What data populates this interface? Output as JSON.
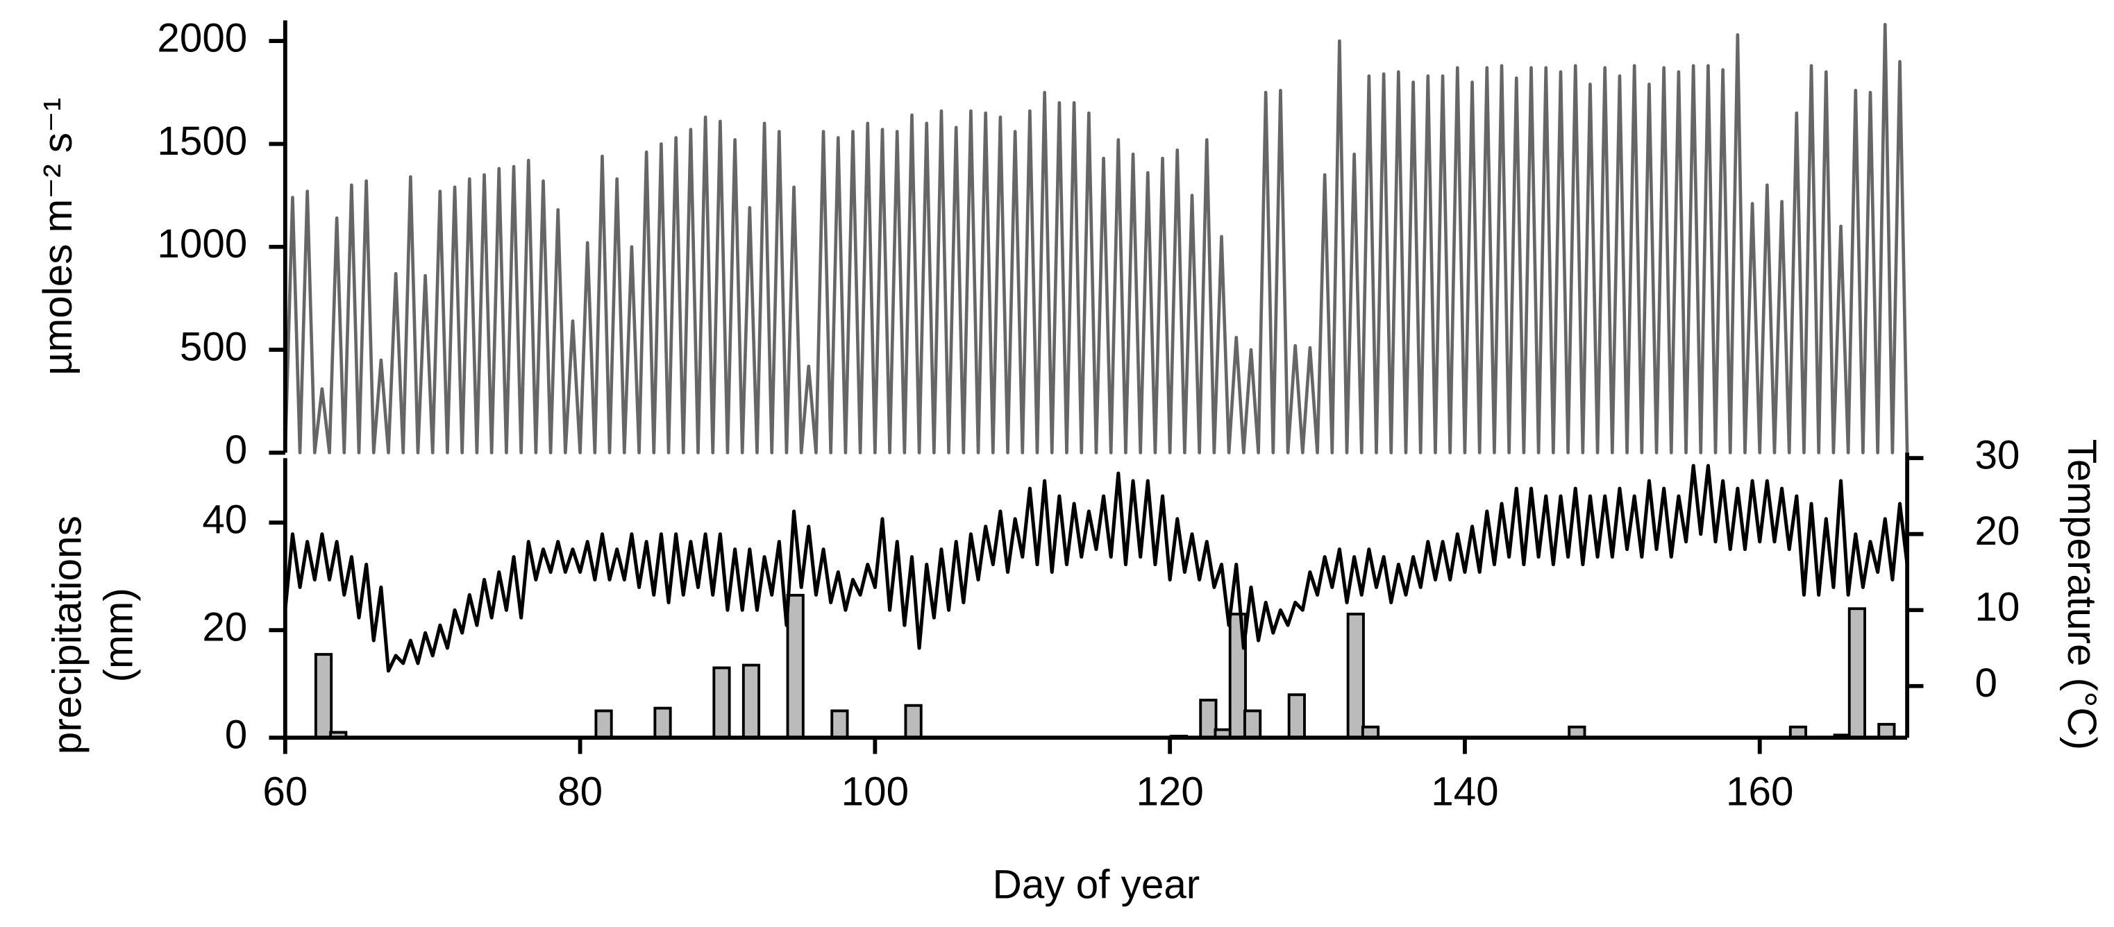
{
  "chart_data": [
    {
      "type": "line",
      "ylabel": "µmoles m⁻² s⁻¹",
      "xlim": [
        60,
        170
      ],
      "ylim": [
        0,
        2100
      ],
      "yticks": [
        0,
        500,
        1000,
        1500,
        2000
      ],
      "color": "#666666",
      "x": [
        60,
        60.5,
        61,
        61.5,
        62,
        62.5,
        63,
        63.5,
        64,
        64.5,
        65,
        65.5,
        66,
        66.5,
        67,
        67.5,
        68,
        68.5,
        69,
        69.5,
        70,
        70.5,
        71,
        71.5,
        72,
        72.5,
        73,
        73.5,
        74,
        74.5,
        75,
        75.5,
        76,
        76.5,
        77,
        77.5,
        78,
        78.5,
        79,
        79.5,
        80,
        80.5,
        81,
        81.5,
        82,
        82.5,
        83,
        83.5,
        84,
        84.5,
        85,
        85.5,
        86,
        86.5,
        87,
        87.5,
        88,
        88.5,
        89,
        89.5,
        90,
        90.5,
        91,
        91.5,
        92,
        92.5,
        93,
        93.5,
        94,
        94.5,
        95,
        95.5,
        96,
        96.5,
        97,
        97.5,
        98,
        98.5,
        99,
        99.5,
        100,
        100.5,
        101,
        101.5,
        102,
        102.5,
        103,
        103.5,
        104,
        104.5,
        105,
        105.5,
        106,
        106.5,
        107,
        107.5,
        108,
        108.5,
        109,
        109.5,
        110,
        110.5,
        111,
        111.5,
        112,
        112.5,
        113,
        113.5,
        114,
        114.5,
        115,
        115.5,
        116,
        116.5,
        117,
        117.5,
        118,
        118.5,
        119,
        119.5,
        120,
        120.5,
        121,
        121.5,
        122,
        122.5,
        123,
        123.5,
        124,
        124.5,
        125,
        125.5,
        126,
        126.5,
        127,
        127.5,
        128,
        128.5,
        129,
        129.5,
        130,
        130.5,
        131,
        131.5,
        132,
        132.5,
        133,
        133.5,
        134,
        134.5,
        135,
        135.5,
        136,
        136.5,
        137,
        137.5,
        138,
        138.5,
        139,
        139.5,
        140,
        140.5,
        141,
        141.5,
        142,
        142.5,
        143,
        143.5,
        144,
        144.5,
        145,
        145.5,
        146,
        146.5,
        147,
        147.5,
        148,
        148.5,
        149,
        149.5,
        150,
        150.5,
        151,
        151.5,
        152,
        152.5,
        153,
        153.5,
        154,
        154.5,
        155,
        155.5,
        156,
        156.5,
        157,
        157.5,
        158,
        158.5,
        159,
        159.5,
        160,
        160.5,
        161,
        161.5,
        162,
        162.5,
        163,
        163.5,
        164,
        164.5,
        165,
        165.5,
        166,
        166.5,
        167,
        167.5,
        168,
        168.5,
        169,
        169.5,
        170
      ],
      "values": [
        0,
        1240,
        0,
        1270,
        0,
        310,
        0,
        1140,
        0,
        1300,
        0,
        1320,
        0,
        450,
        0,
        870,
        0,
        1340,
        0,
        860,
        0,
        1270,
        0,
        1290,
        0,
        1330,
        0,
        1350,
        0,
        1380,
        0,
        1390,
        0,
        1420,
        0,
        1320,
        0,
        1180,
        0,
        640,
        0,
        1020,
        0,
        1440,
        0,
        1330,
        0,
        1000,
        0,
        1460,
        0,
        1500,
        0,
        1530,
        0,
        1570,
        0,
        1630,
        0,
        1610,
        0,
        1520,
        0,
        1190,
        0,
        1600,
        0,
        1560,
        0,
        1290,
        0,
        420,
        0,
        1560,
        0,
        1530,
        0,
        1560,
        0,
        1600,
        0,
        1570,
        0,
        1560,
        0,
        1640,
        0,
        1600,
        0,
        1660,
        0,
        1580,
        0,
        1660,
        0,
        1650,
        0,
        1630,
        0,
        1560,
        0,
        1660,
        0,
        1750,
        0,
        1700,
        0,
        1700,
        0,
        1650,
        0,
        1430,
        0,
        1520,
        0,
        1450,
        0,
        1360,
        0,
        1430,
        0,
        1470,
        0,
        1250,
        0,
        1520,
        0,
        1050,
        0,
        560,
        0,
        500,
        0,
        1750,
        0,
        1760,
        0,
        520,
        0,
        510,
        0,
        1350,
        0,
        2000,
        0,
        1450,
        0,
        1830,
        0,
        1840,
        0,
        1850,
        0,
        1800,
        0,
        1830,
        0,
        1830,
        0,
        1870,
        0,
        1800,
        0,
        1870,
        0,
        1880,
        0,
        1820,
        0,
        1870,
        0,
        1870,
        0,
        1850,
        0,
        1880,
        0,
        1790,
        0,
        1870,
        0,
        1830,
        0,
        1880,
        0,
        1790,
        0,
        1870,
        0,
        1850,
        0,
        1880,
        0,
        1880,
        0,
        1860,
        0,
        2030,
        0,
        1210,
        0,
        1300,
        0,
        1220,
        0,
        1650,
        0,
        1880,
        0,
        1850,
        0,
        1100,
        0,
        1760,
        0,
        1750,
        0,
        2080,
        0,
        1900,
        0
      ]
    },
    {
      "type": "bar",
      "xlabel": "Day of year",
      "ylabel": [
        "precipitations",
        "(mm)"
      ],
      "y2label": "Temperature (°C)",
      "xlim": [
        60,
        170
      ],
      "xticks": [
        60,
        80,
        100,
        120,
        140,
        160
      ],
      "ylim": [
        0,
        52
      ],
      "yticks": [
        0,
        20,
        40
      ],
      "y2lim": [
        -6.8,
        30
      ],
      "y2ticks": [
        0,
        10,
        20,
        30
      ],
      "series": [
        {
          "type": "bar",
          "color": "#bbbbbb",
          "x": [
            62.6,
            63.6,
            81.6,
            85.6,
            89.6,
            91.6,
            94.6,
            97.6,
            102.6,
            120.6,
            122.6,
            123.6,
            124.6,
            125.6,
            128.6,
            132.6,
            133.6,
            147.6,
            162.6,
            165.6,
            166.6,
            168.6
          ],
          "values": [
            15.5,
            1,
            5,
            5.5,
            13,
            13.5,
            26.5,
            5,
            6,
            0.3,
            7,
            1.5,
            23,
            5,
            8,
            23,
            2,
            2,
            2,
            0.5,
            24,
            2.5
          ]
        },
        {
          "type": "line",
          "axis": "y2",
          "color": "#000000",
          "x": [
            60,
            60.5,
            61,
            61.5,
            62,
            62.5,
            63,
            63.5,
            64,
            64.5,
            65,
            65.5,
            66,
            66.5,
            67,
            67.5,
            68,
            68.5,
            69,
            69.5,
            70,
            70.5,
            71,
            71.5,
            72,
            72.5,
            73,
            73.5,
            74,
            74.5,
            75,
            75.5,
            76,
            76.5,
            77,
            77.5,
            78,
            78.5,
            79,
            79.5,
            80,
            80.5,
            81,
            81.5,
            82,
            82.5,
            83,
            83.5,
            84,
            84.5,
            85,
            85.5,
            86,
            86.5,
            87,
            87.5,
            88,
            88.5,
            89,
            89.5,
            90,
            90.5,
            91,
            91.5,
            92,
            92.5,
            93,
            93.5,
            94,
            94.5,
            95,
            95.5,
            96,
            96.5,
            97,
            97.5,
            98,
            98.5,
            99,
            99.5,
            100,
            100.5,
            101,
            101.5,
            102,
            102.5,
            103,
            103.5,
            104,
            104.5,
            105,
            105.5,
            106,
            106.5,
            107,
            107.5,
            108,
            108.5,
            109,
            109.5,
            110,
            110.5,
            111,
            111.5,
            112,
            112.5,
            113,
            113.5,
            114,
            114.5,
            115,
            115.5,
            116,
            116.5,
            117,
            117.5,
            118,
            118.5,
            119,
            119.5,
            120,
            120.5,
            121,
            121.5,
            122,
            122.5,
            123,
            123.5,
            124,
            124.5,
            125,
            125.5,
            126,
            126.5,
            127,
            127.5,
            128,
            128.5,
            129,
            129.5,
            130,
            130.5,
            131,
            131.5,
            132,
            132.5,
            133,
            133.5,
            134,
            134.5,
            135,
            135.5,
            136,
            136.5,
            137,
            137.5,
            138,
            138.5,
            139,
            139.5,
            140,
            140.5,
            141,
            141.5,
            142,
            142.5,
            143,
            143.5,
            144,
            144.5,
            145,
            145.5,
            146,
            146.5,
            147,
            147.5,
            148,
            148.5,
            149,
            149.5,
            150,
            150.5,
            151,
            151.5,
            152,
            152.5,
            153,
            153.5,
            154,
            154.5,
            155,
            155.5,
            156,
            156.5,
            157,
            157.5,
            158,
            158.5,
            159,
            159.5,
            160,
            160.5,
            161,
            161.5,
            162,
            162.5,
            163,
            163.5,
            164,
            164.5,
            165,
            165.5,
            166,
            166.5,
            167,
            167.5,
            168,
            168.5,
            169,
            169.5,
            170
          ],
          "values": [
            10,
            20,
            13,
            19,
            14,
            20,
            14,
            19,
            12,
            17,
            9,
            16,
            6,
            13,
            2,
            4,
            3,
            6,
            3,
            7,
            4,
            8,
            5,
            10,
            7,
            12,
            8,
            14,
            9,
            15,
            10,
            17,
            9,
            19,
            14,
            18,
            15,
            19,
            15,
            18,
            15,
            19,
            14,
            20,
            14,
            18,
            14,
            20,
            13,
            19,
            12,
            20,
            11,
            20,
            12,
            19,
            13,
            20,
            12,
            20,
            10,
            18,
            10,
            18,
            10,
            17,
            12,
            19,
            8,
            23,
            13,
            21,
            12,
            18,
            11,
            15,
            10,
            14,
            12,
            16,
            13,
            22,
            10,
            19,
            8,
            17,
            5,
            16,
            9,
            18,
            10,
            19,
            11,
            20,
            14,
            21,
            16,
            23,
            15,
            22,
            17,
            26,
            16,
            27,
            15,
            25,
            16,
            24,
            17,
            23,
            18,
            25,
            17,
            28,
            16,
            27,
            17,
            27,
            16,
            25,
            14,
            22,
            15,
            20,
            14,
            19,
            13,
            16,
            8,
            16,
            5,
            13,
            6,
            11,
            7,
            10,
            8,
            11,
            10,
            15,
            12,
            17,
            13,
            18,
            11,
            17,
            12,
            18,
            13,
            17,
            11,
            16,
            12,
            17,
            13,
            19,
            14,
            19,
            14,
            20,
            15,
            21,
            15,
            23,
            16,
            24,
            17,
            26,
            16,
            26,
            17,
            25,
            16,
            25,
            17,
            26,
            16,
            25,
            17,
            25,
            17,
            26,
            18,
            25,
            17,
            27,
            18,
            26,
            17,
            25,
            19,
            29,
            20,
            29,
            19,
            27,
            18,
            26,
            18,
            27,
            19,
            27,
            19,
            26,
            18,
            25,
            12,
            24,
            12,
            22,
            13,
            27,
            12,
            20,
            13,
            19,
            15,
            22,
            14,
            24,
            16
          ]
        }
      ]
    }
  ]
}
